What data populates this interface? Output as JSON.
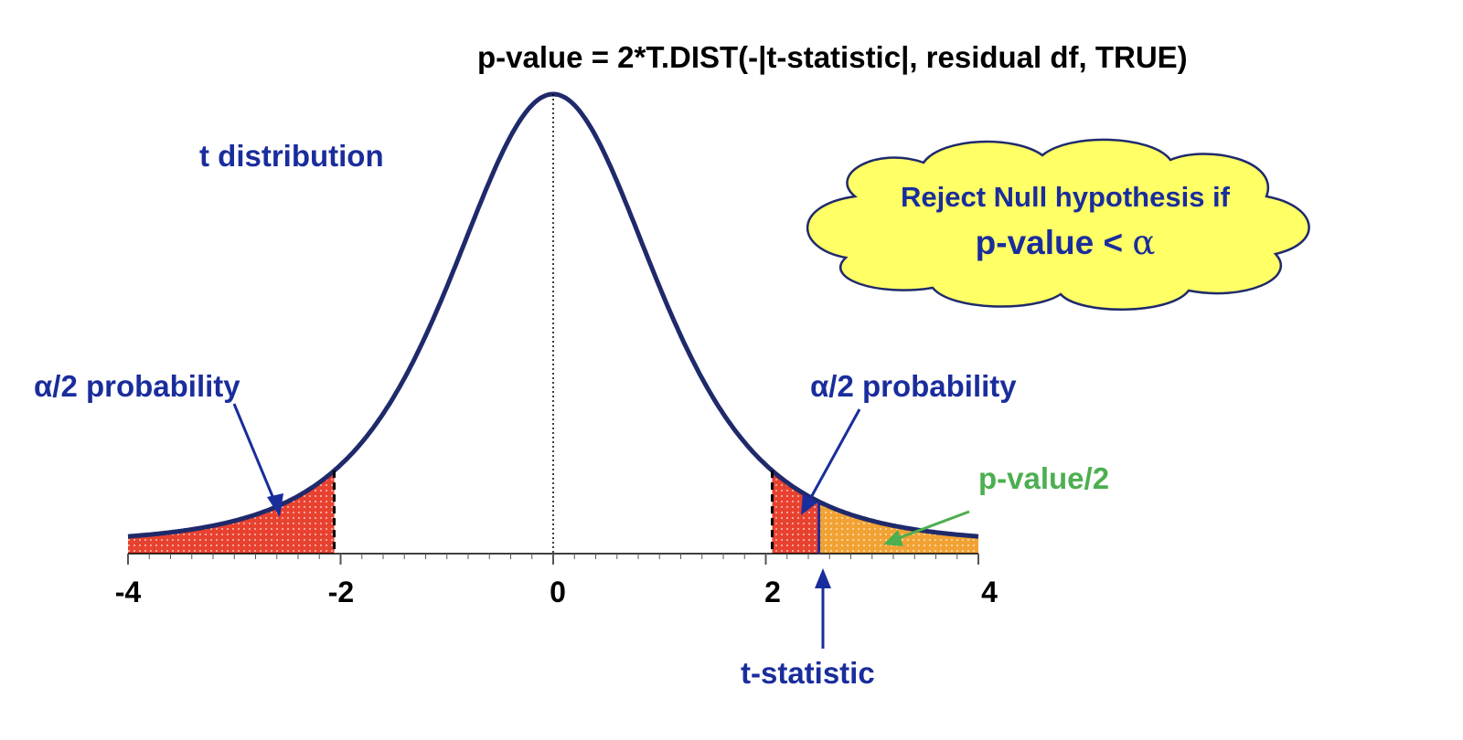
{
  "title": "p-value = 2*T.DIST(-|t-statistic|,  residual df, TRUE)",
  "curve_label": "t distribution",
  "cloud": {
    "line1": "Reject Null hypothesis if",
    "line2_prefix": "p-value  <  ",
    "line2_symbol": "α"
  },
  "left_tail_label": "α/2 probability",
  "right_tail_label": "α/2 probability",
  "pvalue_half_label": "p-value/2",
  "tstat_label": "t-statistic",
  "axis_ticks": [
    "-4",
    "-2",
    "0",
    "2",
    "4"
  ],
  "colors": {
    "curve": "#1f2a6b",
    "label": "#1a2d9c",
    "tail_red": "#e8412f",
    "tail_orange": "#f2a233",
    "pvalue_label": "#4caf50",
    "cloud_fill": "#ffff66"
  },
  "chart_data": {
    "type": "area",
    "distribution": "t",
    "xlim": [
      -4,
      4
    ],
    "x_ticks": [
      -4,
      -2,
      0,
      2,
      4
    ],
    "critical_values": [
      -2.06,
      2.06
    ],
    "t_statistic": 2.5
  }
}
